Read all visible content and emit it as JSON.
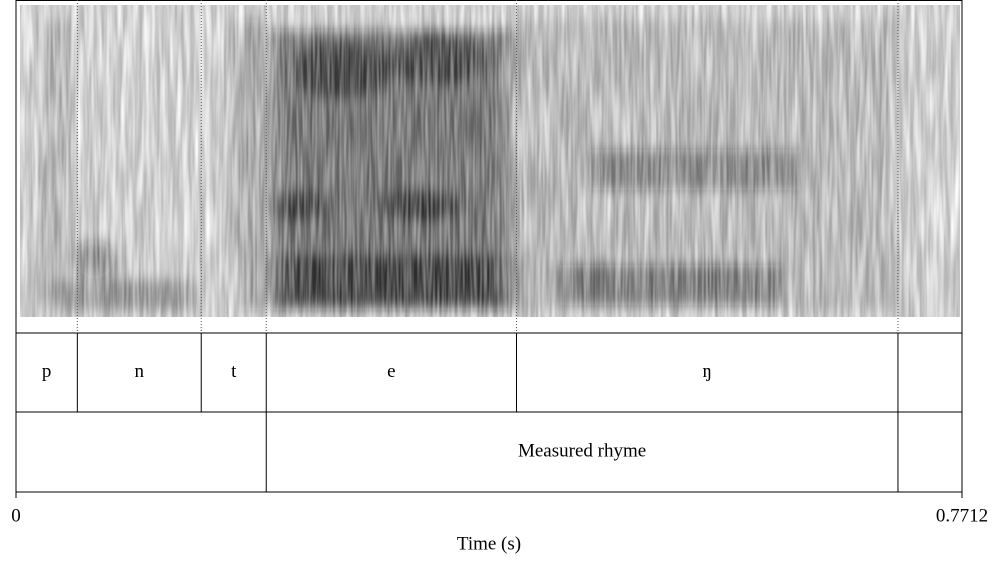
{
  "chart_data": {
    "type": "textgrid",
    "x_label": "Time (s)",
    "xlim": [
      0,
      0.7712
    ],
    "xticks": [
      0,
      0.7712
    ],
    "tiers": [
      {
        "boundaries": [
          0.05,
          0.151,
          0.204,
          0.408,
          0.719
        ],
        "labels": [
          "p",
          "n",
          "t",
          "e",
          "ŋ",
          null
        ]
      },
      {
        "boundaries": [
          0.204,
          0.719
        ],
        "labels": [
          null,
          "Measured rhyme",
          null
        ]
      }
    ]
  }
}
